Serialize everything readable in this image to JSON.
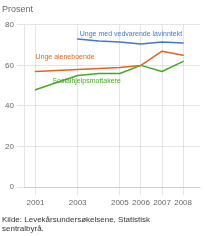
{
  "chart_data": {
    "type": "line",
    "ylabel": "Prosent",
    "source": "Kilde: Levekårsundersøkelsene, Statistisk\nsentralbyrå.",
    "series": [
      {
        "color": "#4477cc",
        "x": [
          2003,
          2004,
          2005,
          2006,
          2007,
          2008
        ],
        "values": [
          73,
          72,
          71.5,
          70.5,
          71.5,
          71
        ]
      },
      {
        "color": "#dd6622",
        "x": [
          2001,
          2003,
          2004,
          2005,
          2006,
          2007,
          2008
        ],
        "values": [
          57,
          58,
          58.5,
          59,
          60,
          67,
          65
        ]
      },
      {
        "color": "#44aa22",
        "x": [
          2001,
          2003,
          2004,
          2005,
          2006,
          2007,
          2008
        ],
        "values": [
          48,
          55,
          56,
          56,
          60,
          57,
          62
        ]
      }
    ],
    "xlim": [
      2000.5,
      2008.8
    ],
    "xticks": [
      2001,
      2003,
      2005,
      2006,
      2007,
      2008
    ],
    "ylim": [
      0,
      80
    ],
    "yticks": [
      0,
      20,
      40,
      60,
      80
    ],
    "grid": true,
    "annotations": [
      {
        "text": "Unge med vedvarende lavinntekt",
        "x": 2003.1,
        "y": 73.8,
        "color": "#4477cc"
      },
      {
        "text": "Unge aleneboende",
        "x": 2001.0,
        "y": 62.5,
        "color": "#dd6622"
      },
      {
        "text": "Sosialhjelpsmottakere",
        "x": 2001.8,
        "y": 50.5,
        "color": "#44aa22"
      }
    ]
  }
}
